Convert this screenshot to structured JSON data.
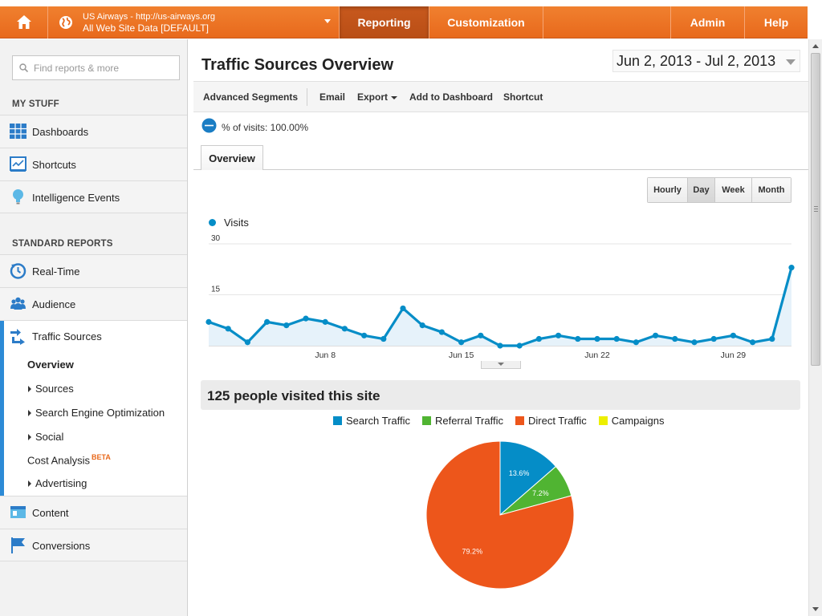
{
  "topbar": {
    "profile_line1": "US Airways - http://us-airways.org",
    "profile_line2": "All Web Site Data [DEFAULT]",
    "nav": {
      "reporting": "Reporting",
      "customization": "Customization",
      "admin": "Admin",
      "help": "Help"
    },
    "accent_color": "#e8691c"
  },
  "sidebar": {
    "search_placeholder": "Find reports & more",
    "my_stuff_heading": "MY STUFF",
    "my_stuff": [
      {
        "label": "Dashboards",
        "icon": "dashboards-grid-icon"
      },
      {
        "label": "Shortcuts",
        "icon": "shortcuts-icon"
      },
      {
        "label": "Intelligence Events",
        "icon": "lightbulb-icon"
      }
    ],
    "standard_heading": "STANDARD REPORTS",
    "standard": [
      {
        "label": "Real-Time",
        "icon": "realtime-clock-icon"
      },
      {
        "label": "Audience",
        "icon": "audience-people-icon"
      },
      {
        "label": "Traffic Sources",
        "icon": "traffic-arrows-icon"
      }
    ],
    "traffic_sub": {
      "overview": "Overview",
      "sources": "Sources",
      "seo": "Search Engine Optimization",
      "social": "Social",
      "cost_analysis": "Cost Analysis",
      "beta": "BETA",
      "advertising": "Advertising"
    },
    "more": [
      {
        "label": "Content",
        "icon": "content-icon"
      },
      {
        "label": "Conversions",
        "icon": "flag-icon"
      }
    ]
  },
  "main": {
    "title": "Traffic Sources Overview",
    "date_range": "Jun 2, 2013 - Jul 2, 2013",
    "toolbar": {
      "advanced_segments": "Advanced Segments",
      "email": "Email",
      "export": "Export",
      "add_to_dashboard": "Add to Dashboard",
      "shortcut": "Shortcut"
    },
    "segment_text": "% of visits: 100.00%",
    "tab": "Overview",
    "granularity": [
      "Hourly",
      "Day",
      "Week",
      "Month"
    ],
    "granularity_selected": "Day",
    "legend_visits": "Visits",
    "summary": "125 people visited this site"
  },
  "chart_data": [
    {
      "type": "area",
      "series": [
        {
          "name": "Visits",
          "color": "#058dc7",
          "values": [
            7,
            5,
            1,
            7,
            6,
            8,
            7,
            5,
            3,
            2,
            11,
            6,
            4,
            1,
            3,
            0,
            0,
            2,
            3,
            2,
            2,
            2,
            1,
            3,
            2,
            1,
            2,
            3,
            1,
            2,
            23
          ]
        }
      ],
      "x": [
        "Jun 2",
        "Jun 3",
        "Jun 4",
        "Jun 5",
        "Jun 6",
        "Jun 7",
        "Jun 8",
        "Jun 9",
        "Jun 10",
        "Jun 11",
        "Jun 12",
        "Jun 13",
        "Jun 14",
        "Jun 15",
        "Jun 16",
        "Jun 17",
        "Jun 18",
        "Jun 19",
        "Jun 20",
        "Jun 21",
        "Jun 22",
        "Jun 23",
        "Jun 24",
        "Jun 25",
        "Jun 26",
        "Jun 27",
        "Jun 28",
        "Jun 29",
        "Jun 30",
        "Jul 1",
        "Jul 2"
      ],
      "x_tick_labels": [
        "Jun 8",
        "Jun 15",
        "Jun 22",
        "Jun 29"
      ],
      "y_ticks": [
        30,
        15
      ],
      "ylim": [
        0,
        30
      ],
      "grid": true
    },
    {
      "type": "pie",
      "categories": [
        "Search Traffic",
        "Referral Traffic",
        "Direct Traffic",
        "Campaigns"
      ],
      "values": [
        13.6,
        7.2,
        79.2,
        0
      ],
      "labels": [
        "13.6%",
        "7.2%",
        "79.2%",
        ""
      ],
      "colors": [
        "#058dc7",
        "#50b432",
        "#ed561b",
        "#edef00"
      ],
      "legend": "top"
    }
  ]
}
